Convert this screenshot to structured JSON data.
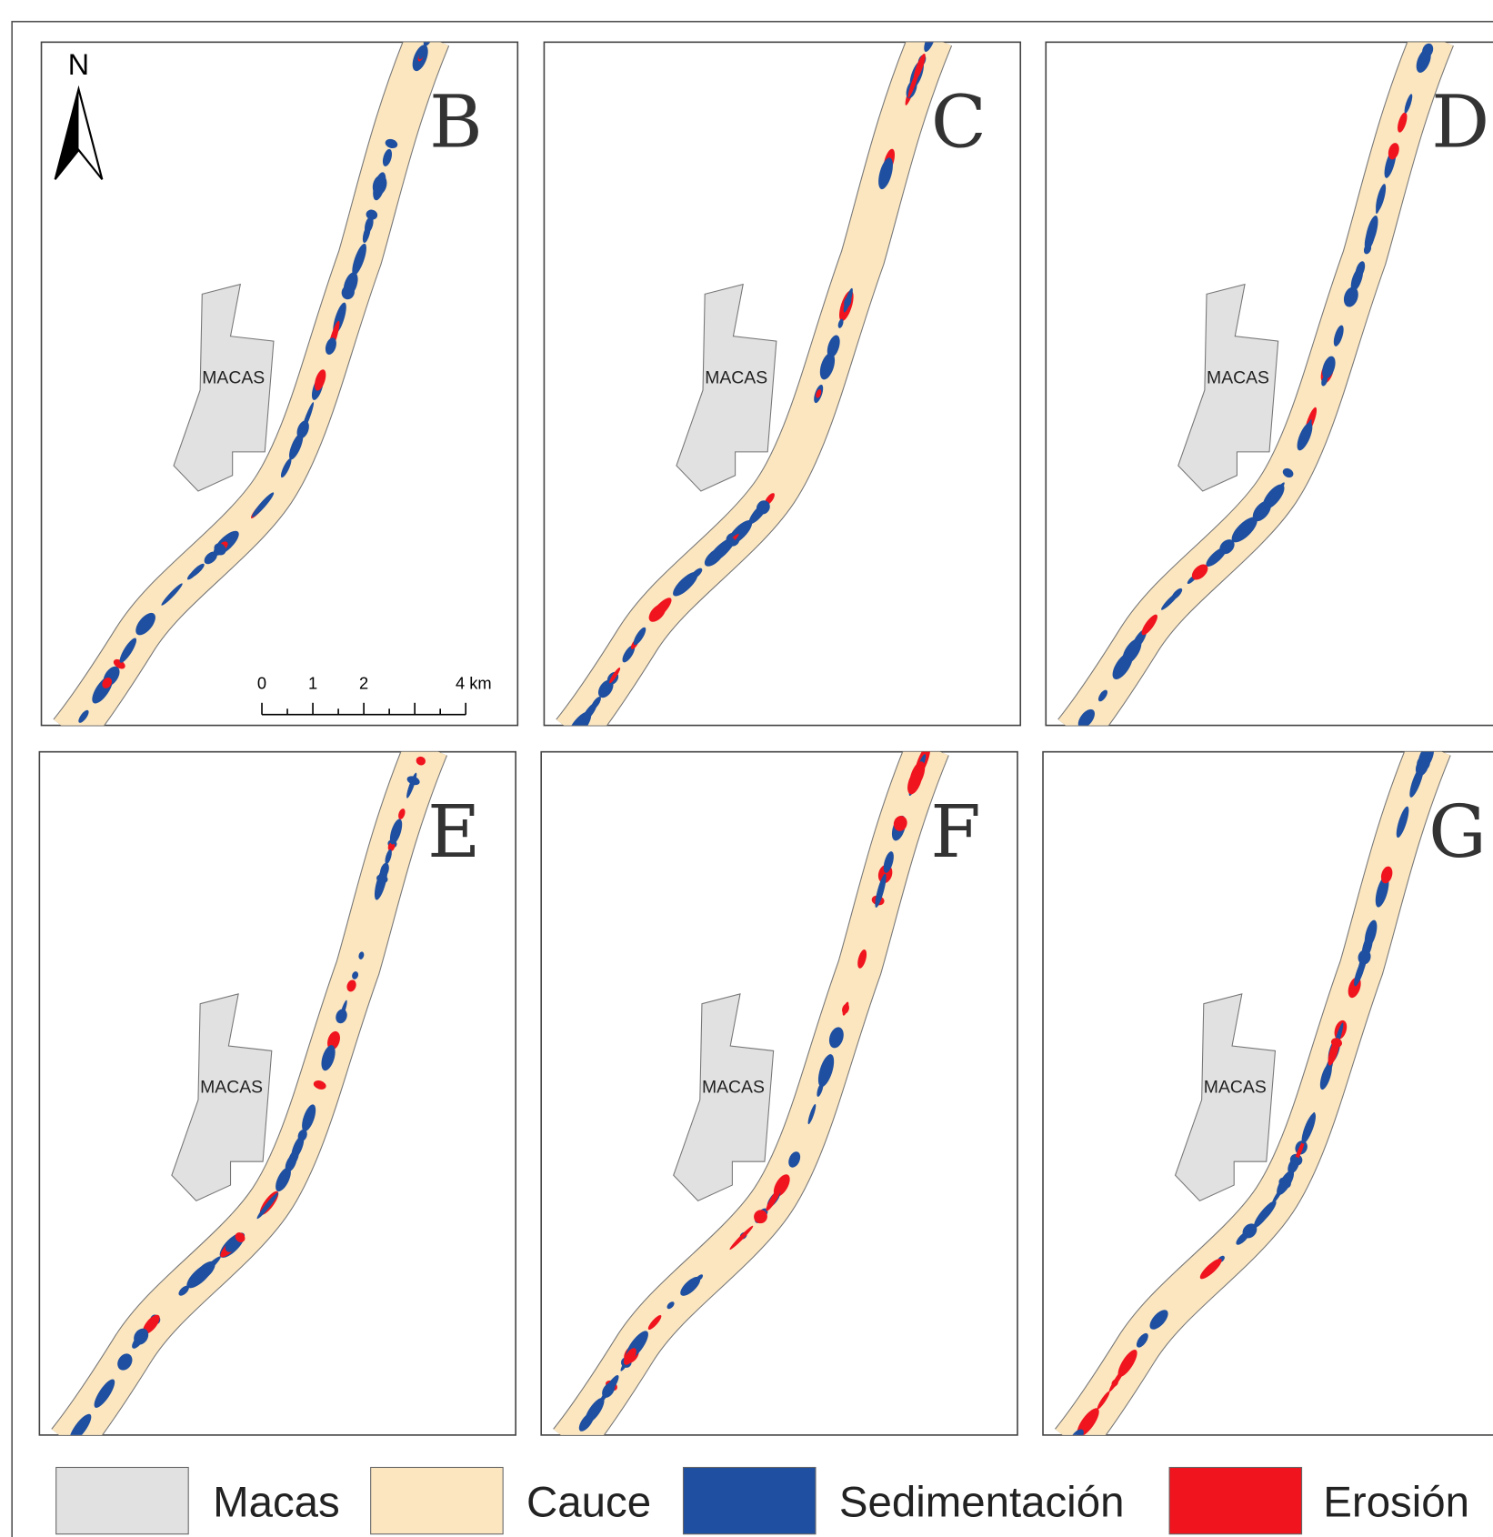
{
  "north_arrow": "N",
  "scale_bar": {
    "labels": [
      "0",
      "1",
      "2",
      "4 km"
    ]
  },
  "panels": [
    {
      "label": "B",
      "city": "MACAS"
    },
    {
      "label": "C",
      "city": "MACAS"
    },
    {
      "label": "D",
      "city": "MACAS"
    },
    {
      "label": "E",
      "city": "MACAS"
    },
    {
      "label": "F",
      "city": "MACAS"
    },
    {
      "label": "G",
      "city": "MACAS"
    }
  ],
  "legend": [
    {
      "label": "Macas",
      "color": "#e1e1e1"
    },
    {
      "label": "Cauce",
      "color": "#fbe6c0"
    },
    {
      "label": "Sedimentación",
      "color": "#1f4fa0"
    },
    {
      "label": "Erosión",
      "color": "#f0141e"
    }
  ]
}
